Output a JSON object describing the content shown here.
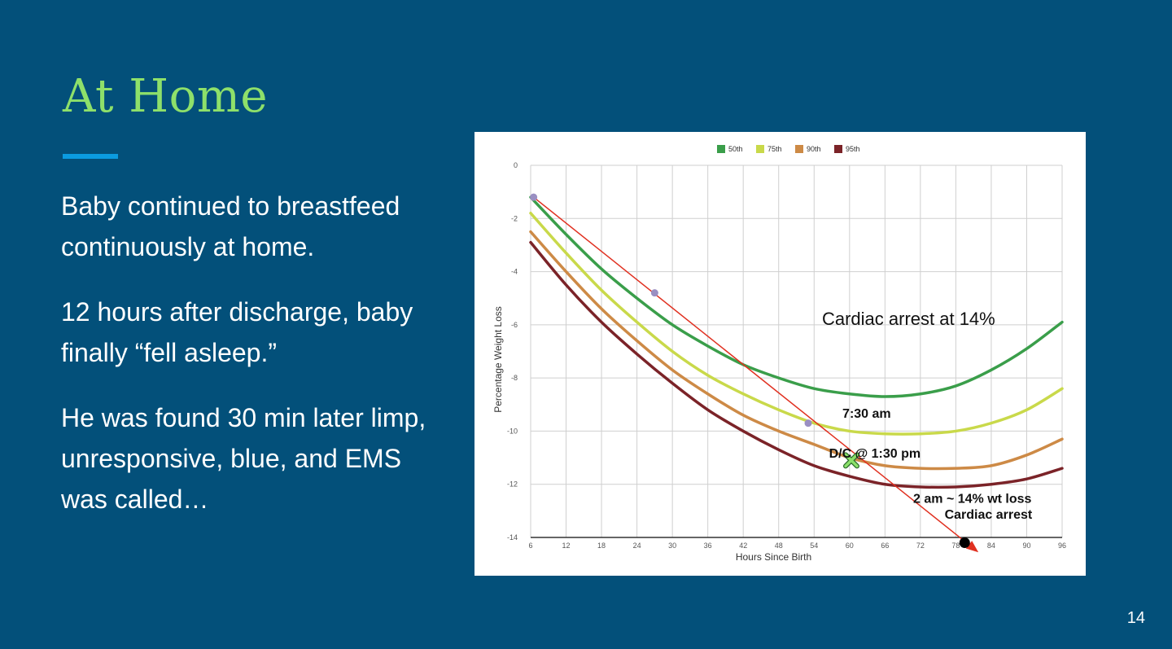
{
  "slide": {
    "title": "At Home",
    "paragraphs": [
      "Baby continued to breastfeed continuously at home.",
      "12 hours after discharge, baby finally “fell asleep.”",
      "He was found 30 min later limp, unresponsive, blue, and EMS was called…"
    ],
    "page_number": "14",
    "colors": {
      "background": "#03507a",
      "title": "#8ee06a",
      "accent_rule": "#0b9be0"
    }
  },
  "chart_data": {
    "type": "line",
    "xlabel": "Hours Since Birth",
    "ylabel": "Percentage Weight Loss",
    "xlim": [
      6,
      96
    ],
    "ylim": [
      -14,
      0
    ],
    "xticks": [
      6,
      12,
      18,
      24,
      30,
      36,
      42,
      48,
      54,
      60,
      66,
      72,
      78,
      84,
      90,
      96
    ],
    "yticks": [
      0,
      -2,
      -4,
      -6,
      -8,
      -10,
      -12,
      -14
    ],
    "grid": true,
    "legend_position": "top-center",
    "series": [
      {
        "name": "50th",
        "color": "#3a9e4a",
        "x": [
          6,
          12,
          18,
          24,
          30,
          36,
          42,
          48,
          54,
          60,
          66,
          72,
          78,
          84,
          90,
          96
        ],
        "values": [
          -1.2,
          -2.6,
          -3.9,
          -5.0,
          -6.0,
          -6.8,
          -7.5,
          -8.0,
          -8.4,
          -8.6,
          -8.7,
          -8.6,
          -8.3,
          -7.7,
          -6.9,
          -5.9
        ]
      },
      {
        "name": "75th",
        "color": "#c9d94a",
        "x": [
          6,
          12,
          18,
          24,
          30,
          36,
          42,
          48,
          54,
          60,
          66,
          72,
          78,
          84,
          90,
          96
        ],
        "values": [
          -1.8,
          -3.3,
          -4.7,
          -5.9,
          -7.0,
          -7.9,
          -8.6,
          -9.2,
          -9.7,
          -10.0,
          -10.1,
          -10.1,
          -10.0,
          -9.7,
          -9.2,
          -8.4
        ]
      },
      {
        "name": "90th",
        "color": "#cd8a46",
        "x": [
          6,
          12,
          18,
          24,
          30,
          36,
          42,
          48,
          54,
          60,
          66,
          72,
          78,
          84,
          90,
          96
        ],
        "values": [
          -2.5,
          -4.0,
          -5.4,
          -6.6,
          -7.7,
          -8.6,
          -9.4,
          -10.0,
          -10.5,
          -11.0,
          -11.3,
          -11.4,
          -11.4,
          -11.3,
          -10.9,
          -10.3
        ]
      },
      {
        "name": "95th",
        "color": "#7b2328",
        "x": [
          6,
          12,
          18,
          24,
          30,
          36,
          42,
          48,
          54,
          60,
          66,
          72,
          78,
          84,
          90,
          96
        ],
        "values": [
          -2.9,
          -4.5,
          -5.9,
          -7.1,
          -8.2,
          -9.2,
          -10.0,
          -10.7,
          -11.3,
          -11.7,
          -12.0,
          -12.1,
          -12.1,
          -12.0,
          -11.8,
          -11.4
        ]
      }
    ],
    "points": [
      {
        "x": 6.5,
        "y": -1.2,
        "color": "#9a8fc2"
      },
      {
        "x": 27,
        "y": -4.8,
        "color": "#9a8fc2"
      },
      {
        "x": 53,
        "y": -9.7,
        "color": "#9a8fc2"
      },
      {
        "x": 60.3,
        "y": -11.1,
        "marker": "x",
        "color": "#8be06a"
      },
      {
        "x": 79.5,
        "y": -14.2,
        "color": "#000000"
      }
    ],
    "trend_line": {
      "from": [
        6.5,
        -1.2
      ],
      "to": [
        78.8,
        -14.3
      ],
      "arrow_to": [
        81.5,
        -14.5
      ],
      "color": "#e03020"
    },
    "annotations": [
      {
        "text": "Cardiac arrest at 14%",
        "x": 70,
        "y": -6,
        "bold": false
      },
      {
        "text": "7:30 am",
        "x": 61,
        "y": -9.5,
        "bold": true
      },
      {
        "text": "D/C @ 1:30 pm",
        "x": 67,
        "y": -11.0,
        "bold": true
      },
      {
        "text": "2 am ~ 14% wt loss",
        "x": 86,
        "y": -12.7,
        "bold": true
      },
      {
        "text": "Cardiac arrest",
        "x": 89,
        "y": -13.3,
        "bold": true
      }
    ]
  }
}
